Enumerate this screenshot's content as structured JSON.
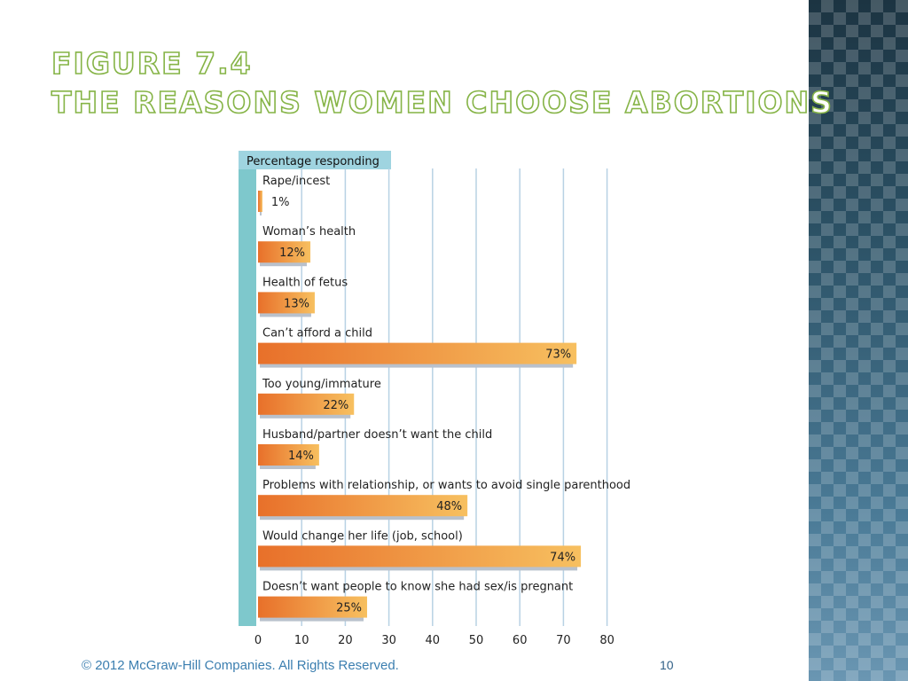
{
  "slide": {
    "title_line1": "Figure 7.4",
    "title_line2": "The Reasons Women Choose Abortions",
    "footer": "© 2012 McGraw-Hill Companies. All Rights Reserved.",
    "page_number": "10"
  },
  "colors": {
    "title_outline": "#86b447",
    "bar_start": "#e8702a",
    "bar_end": "#f7c060",
    "bar_shadow": "#b9c1cc",
    "axis_strip": "#7ec8cc",
    "grid": "#b8d2e4",
    "header_bg": "#9fd4e0",
    "footer_text": "#3c7fb0"
  },
  "chart_data": {
    "type": "bar",
    "orientation": "horizontal",
    "header_label": "Percentage responding",
    "categories": [
      "Rape/incest",
      "Woman’s health",
      "Health of fetus",
      "Can’t afford a child",
      "Too young/immature",
      "Husband/partner doesn’t want the child",
      "Problems with relationship, or wants to avoid single parenthood",
      "Would change her life (job, school)",
      "Doesn’t want people to know she had sex/is pregnant"
    ],
    "values": [
      1,
      12,
      13,
      73,
      22,
      14,
      48,
      74,
      25
    ],
    "value_labels": [
      "1%",
      "12%",
      "13%",
      "73%",
      "22%",
      "14%",
      "48%",
      "74%",
      "25%"
    ],
    "xlim": [
      0,
      80
    ],
    "xticks": [
      0,
      10,
      20,
      30,
      40,
      50,
      60,
      70,
      80
    ],
    "grid": true
  }
}
